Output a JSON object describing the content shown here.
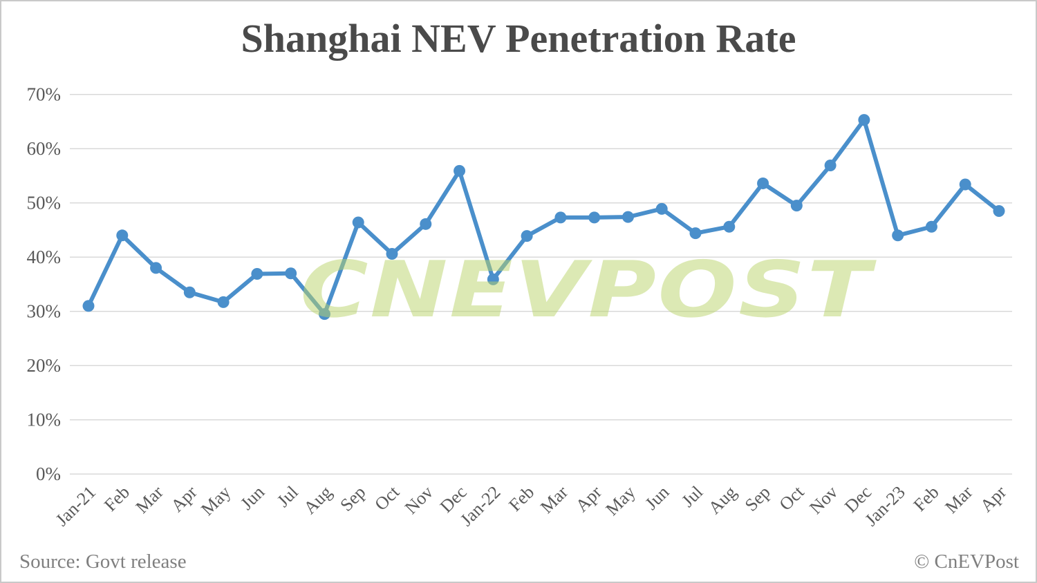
{
  "title": "Shanghai NEV Penetration Rate",
  "watermark": {
    "text": "CNEVPOST"
  },
  "footer": {
    "source": "Source: Govt release",
    "credit": "© CnEVPost"
  },
  "colors": {
    "line": "#4a8fcb",
    "marker": "#4a8fcb",
    "gridline": "#d9d9d9",
    "title_text": "#4a4a4a",
    "axis_text": "#595959",
    "footer_text": "#7f7f7f",
    "watermark_green": "#dce9b4",
    "frame_border": "#c9c9c9",
    "background": "#ffffff"
  },
  "chart_data": {
    "type": "line",
    "title": "Shanghai NEV Penetration Rate",
    "categories": [
      "Jan-21",
      "Feb",
      "Mar",
      "Apr",
      "May",
      "Jun",
      "Jul",
      "Aug",
      "Sep",
      "Oct",
      "Nov",
      "Dec",
      "Jan-22",
      "Feb",
      "Mar",
      "Apr",
      "May",
      "Jun",
      "Jul",
      "Aug",
      "Sep",
      "Oct",
      "Nov",
      "Dec",
      "Jan-23",
      "Feb",
      "Mar",
      "Apr"
    ],
    "values": [
      31.0,
      44.0,
      38.0,
      33.5,
      31.7,
      36.9,
      37.0,
      29.5,
      46.4,
      40.6,
      46.1,
      55.9,
      35.9,
      43.9,
      47.3,
      47.3,
      47.4,
      48.9,
      44.4,
      45.6,
      53.6,
      49.5,
      56.9,
      65.3,
      44.0,
      45.6,
      53.4,
      48.5
    ],
    "unit": "%",
    "xlabel": "",
    "ylabel": "",
    "ylim": [
      0,
      70
    ],
    "ytick_step": 10,
    "ytick_labels": [
      "0%",
      "10%",
      "20%",
      "30%",
      "40%",
      "50%",
      "60%",
      "70%"
    ],
    "x_tick_rotation": -45,
    "grid": true,
    "legend": false,
    "marker": "circle"
  }
}
